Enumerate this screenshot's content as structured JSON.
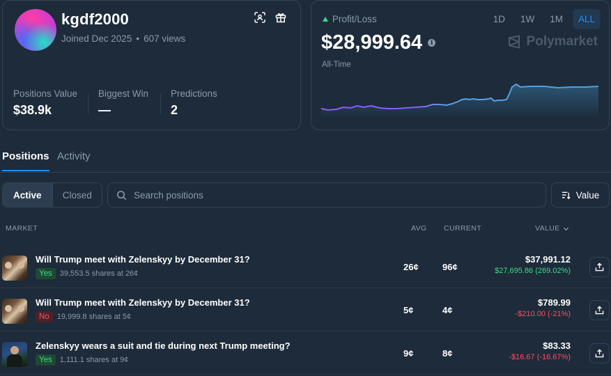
{
  "profile": {
    "username": "kgdf2000",
    "joined": "Joined Dec 2025",
    "views": "607 views",
    "stats": [
      {
        "label": "Positions Value",
        "value": "$38.9k"
      },
      {
        "label": "Biggest Win",
        "value": "—"
      },
      {
        "label": "Predictions",
        "value": "2"
      }
    ]
  },
  "pnl": {
    "label": "Profit/Loss",
    "value": "$28,999.64",
    "period": "All-Time",
    "brand": "Polymarket",
    "ranges": [
      "1D",
      "1W",
      "1M",
      "ALL"
    ],
    "active_range": "ALL",
    "colors": {
      "positive": "#3ddc84",
      "line": "#7b5cff",
      "line_up": "#4aa3df"
    }
  },
  "tabs": {
    "positions": "Positions",
    "activity": "Activity"
  },
  "filters": {
    "active": "Active",
    "closed": "Closed"
  },
  "search": {
    "placeholder": "Search positions"
  },
  "sort": {
    "label": "Value"
  },
  "columns": {
    "market": "MARKET",
    "avg": "AVG",
    "current": "CURRENT",
    "value": "VALUE"
  },
  "positions": [
    {
      "title": "Will Trump meet with Zelenskyy by December 31?",
      "outcome": "Yes",
      "shares": "39,553.5 shares at 26¢",
      "avg": "26¢",
      "current": "96¢",
      "value": "$37,991.12",
      "change": "$27,695.86 (269.02%)"
    },
    {
      "title": "Will Trump meet with Zelenskyy by December 31?",
      "outcome": "No",
      "shares": "19,999.8 shares at 5¢",
      "avg": "5¢",
      "current": "4¢",
      "value": "$789.99",
      "change": "-$210.00 (-21%)"
    },
    {
      "title": "Zelenskyy wears a suit and tie during next Trump meeting?",
      "outcome": "Yes",
      "shares": "1,111.1 shares at 9¢",
      "avg": "9¢",
      "current": "8¢",
      "value": "$83.33",
      "change": "-$16.67 (-16.67%)"
    }
  ]
}
